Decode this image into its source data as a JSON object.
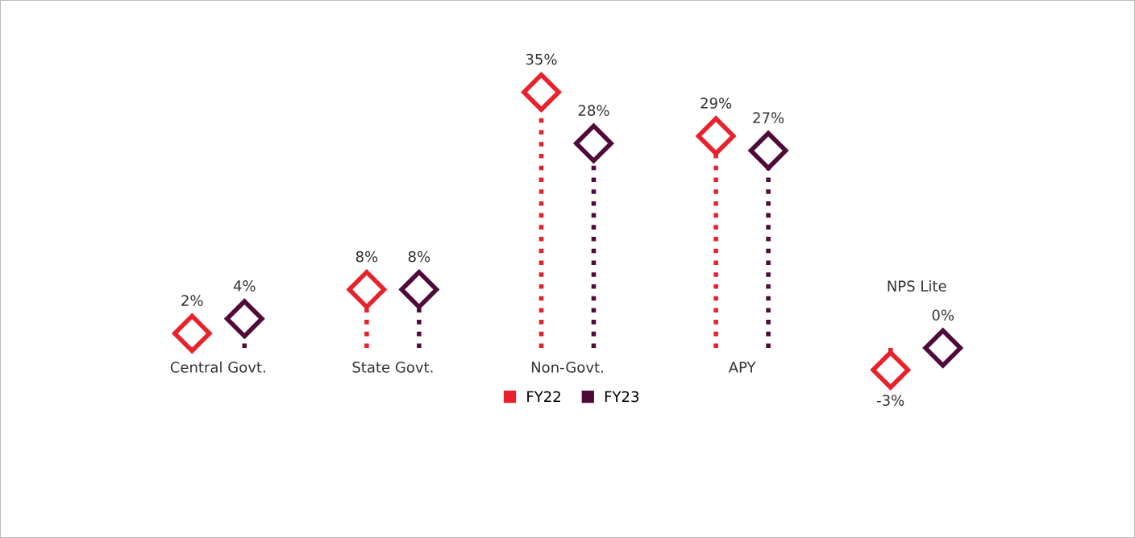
{
  "chart_data": {
    "type": "lollipop",
    "categories": [
      "Central Govt.",
      "State Govt.",
      "Non-Govt.",
      "APY",
      "NPS Lite"
    ],
    "series": [
      {
        "name": "FY22",
        "color": "#e8212b",
        "values": [
          2,
          8,
          35,
          29,
          -3
        ],
        "value_labels": [
          "2%",
          "8%",
          "35%",
          "29%",
          "-3%"
        ]
      },
      {
        "name": "FY23",
        "color": "#4f0a3a",
        "values": [
          4,
          8,
          28,
          27,
          0
        ],
        "value_labels": [
          "4%",
          "8%",
          "28%",
          "27%",
          "0%"
        ]
      }
    ],
    "marker": "diamond",
    "line_style": "dotted",
    "legend": "bottom",
    "tick_labels": "x"
  }
}
